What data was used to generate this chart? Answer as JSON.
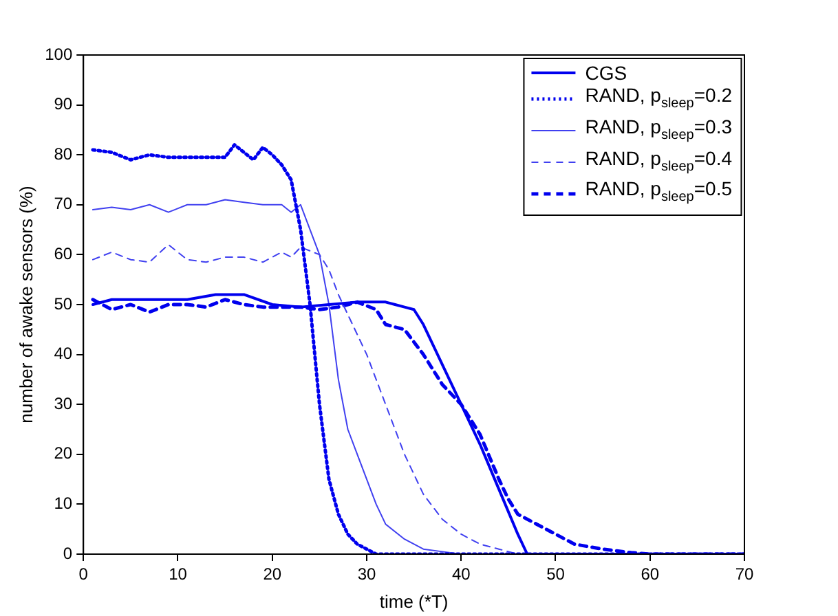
{
  "chart_data": {
    "type": "line",
    "xlabel": "time (*T)",
    "ylabel": "number of awake sensors (%)",
    "xlim": [
      0,
      70
    ],
    "xticks": [
      0,
      10,
      20,
      30,
      40,
      50,
      60,
      70
    ],
    "ylim": [
      0,
      100
    ],
    "yticks": [
      0,
      10,
      20,
      30,
      40,
      50,
      60,
      70,
      80,
      90,
      100
    ],
    "grid": false,
    "legend": "top right",
    "marker": "none",
    "series": [
      {
        "name": "CGS",
        "color": "#0000ee",
        "line_style": "solid",
        "x": [
          1,
          3,
          5,
          8,
          11,
          14,
          17,
          20,
          23,
          26,
          29,
          32,
          33,
          34,
          35,
          36,
          38,
          40,
          42,
          44,
          46,
          47,
          50,
          60,
          70
        ],
        "values": [
          50,
          51,
          51,
          51,
          51,
          52,
          52,
          50,
          49.5,
          50,
          50.5,
          50.5,
          50,
          49.5,
          49,
          46,
          38,
          30,
          22,
          13,
          4,
          0,
          0,
          0,
          0
        ]
      },
      {
        "name": "RAND, p$_{sleep}$=0.2",
        "color": "#0000ee",
        "line_style": "dotted",
        "x": [
          1,
          3,
          5,
          7,
          9,
          11,
          13,
          15,
          16,
          17,
          18,
          19,
          20,
          21,
          22,
          23,
          24,
          25,
          26,
          27,
          28,
          29,
          30,
          31,
          40,
          50,
          60,
          70
        ],
        "values": [
          81,
          80.5,
          79,
          80,
          79.5,
          79.5,
          79.5,
          79.5,
          82,
          80.5,
          79,
          81.5,
          80,
          78,
          75,
          65,
          50,
          30,
          15,
          8,
          4,
          2,
          1,
          0,
          0,
          0,
          0,
          0
        ]
      },
      {
        "name": "RAND, p$_{sleep}$=0.3",
        "color": "#4040f0",
        "line_style": "solid",
        "x": [
          1,
          3,
          5,
          7,
          9,
          11,
          13,
          15,
          17,
          19,
          21,
          22,
          23,
          24,
          25,
          26,
          27,
          28,
          29,
          30,
          31,
          32,
          34,
          36,
          38,
          40,
          50,
          60,
          70
        ],
        "values": [
          69,
          69.5,
          69,
          70,
          68.5,
          70,
          70,
          71,
          70.5,
          70,
          70,
          68.5,
          70,
          65,
          60,
          50,
          35,
          25,
          20,
          15,
          10,
          6,
          3,
          1,
          0.5,
          0,
          0,
          0,
          0
        ]
      },
      {
        "name": "RAND, p$_{sleep}$=0.4",
        "color": "#4040f0",
        "line_style": "dashed",
        "x": [
          1,
          3,
          5,
          7,
          9,
          11,
          13,
          15,
          17,
          19,
          21,
          22,
          23,
          25,
          26,
          27,
          28,
          30,
          32,
          34,
          36,
          38,
          40,
          42,
          44,
          46,
          50,
          60,
          70
        ],
        "values": [
          59,
          60.5,
          59,
          58.5,
          62,
          59,
          58.5,
          59.5,
          59.5,
          58.5,
          60.5,
          59.5,
          61.5,
          60,
          57,
          52,
          48,
          40,
          30,
          20,
          12,
          7,
          4,
          2,
          1,
          0,
          0,
          0,
          0
        ]
      },
      {
        "name": "RAND, p$_{sleep}$=0.5",
        "color": "#0000ee",
        "line_style": "dashed",
        "x": [
          1,
          3,
          5,
          7,
          9,
          11,
          13,
          15,
          17,
          19,
          21,
          23,
          25,
          27,
          29,
          31,
          32,
          34,
          36,
          38,
          40,
          42,
          44,
          45,
          46,
          48,
          50,
          52,
          55,
          58,
          60,
          70
        ],
        "values": [
          51,
          49,
          50,
          48.5,
          50,
          50,
          49.5,
          51,
          50,
          49.5,
          49.5,
          49.5,
          49,
          49.5,
          50.5,
          49,
          46,
          45,
          40,
          34,
          30,
          24,
          15,
          11,
          8,
          6,
          4,
          2,
          1,
          0.3,
          0,
          0
        ]
      }
    ]
  }
}
